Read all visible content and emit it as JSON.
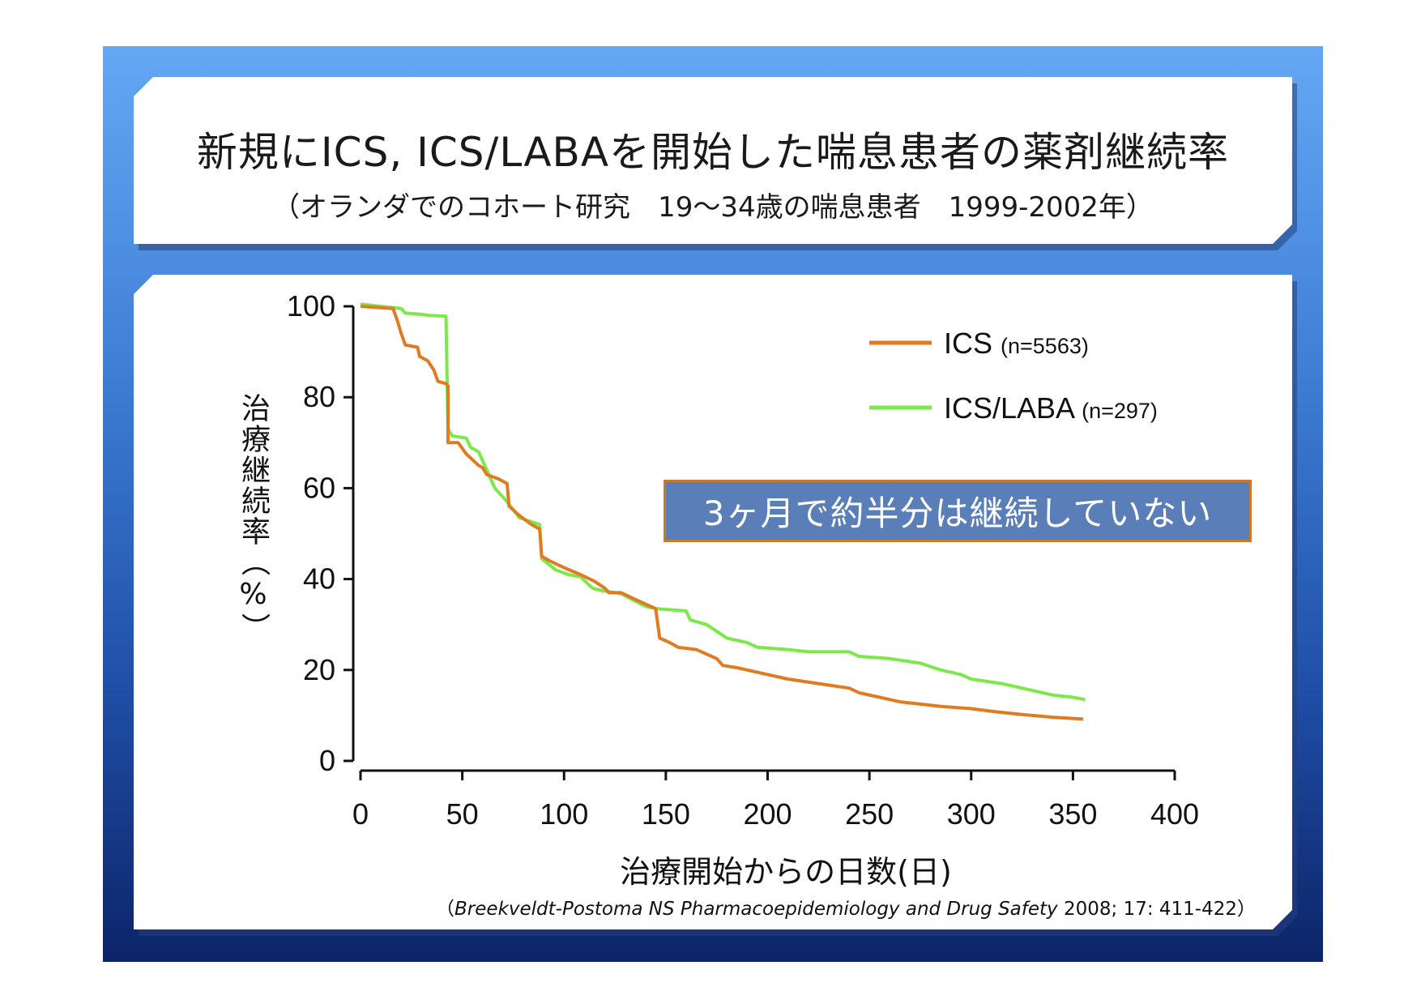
{
  "title": "新規にICS, ICS/LABAを開始した喘息患者の薬剤継続率",
  "subtitle": "（オランダでのコホート研究　19〜34歳の喘息患者　1999-2002年）",
  "callout": "3ヶ月で約半分は継続していない",
  "citation": {
    "open": "（",
    "authors_journal": "Breekveldt-Postoma NS Pharmacoepidemiology and Drug Safety",
    "details": " 2008; 17: 411-422）"
  },
  "colors": {
    "ics": "#e07b22",
    "ics_laba": "#7de84a",
    "callout_bg": "#5a7fb8",
    "callout_border": "#c87a2a"
  },
  "chart_data": {
    "type": "line",
    "xlabel": "治療開始からの日数(日)",
    "ylabel": "治療継続率（%）",
    "xlim": [
      0,
      400
    ],
    "ylim": [
      0,
      100
    ],
    "xticks": [
      0,
      50,
      100,
      150,
      200,
      250,
      300,
      350,
      400
    ],
    "yticks": [
      0,
      20,
      40,
      60,
      80,
      100
    ],
    "grid": false,
    "legend_position": "top-right",
    "series": [
      {
        "name": "ICS",
        "legend_label": "ICS",
        "legend_n": "(n=5563)",
        "color": "#e07b22",
        "points": [
          [
            0,
            100
          ],
          [
            16,
            99.5
          ],
          [
            18,
            97
          ],
          [
            20,
            94
          ],
          [
            22,
            91.5
          ],
          [
            28,
            91
          ],
          [
            29,
            89
          ],
          [
            33,
            88
          ],
          [
            36,
            86
          ],
          [
            38,
            83.5
          ],
          [
            42,
            83
          ],
          [
            43,
            82.5
          ],
          [
            43,
            70
          ],
          [
            48,
            70
          ],
          [
            52,
            67.5
          ],
          [
            58,
            65
          ],
          [
            60,
            64.5
          ],
          [
            62,
            63
          ],
          [
            68,
            62
          ],
          [
            72,
            61
          ],
          [
            73,
            56
          ],
          [
            78,
            54
          ],
          [
            84,
            52
          ],
          [
            88,
            51
          ],
          [
            89,
            45
          ],
          [
            93,
            44
          ],
          [
            100,
            42.5
          ],
          [
            108,
            41
          ],
          [
            115,
            39.5
          ],
          [
            120,
            38
          ],
          [
            122,
            37
          ],
          [
            128,
            37
          ],
          [
            135,
            35.5
          ],
          [
            145,
            33.5
          ],
          [
            147,
            27
          ],
          [
            152,
            26
          ],
          [
            156,
            25
          ],
          [
            165,
            24.5
          ],
          [
            170,
            23.5
          ],
          [
            175,
            22.5
          ],
          [
            178,
            21
          ],
          [
            185,
            20.5
          ],
          [
            200,
            19
          ],
          [
            210,
            18
          ],
          [
            225,
            17
          ],
          [
            240,
            16
          ],
          [
            245,
            15
          ],
          [
            255,
            14
          ],
          [
            260,
            13.5
          ],
          [
            265,
            13
          ],
          [
            275,
            12.5
          ],
          [
            285,
            12
          ],
          [
            300,
            11.5
          ],
          [
            312,
            10.8
          ],
          [
            325,
            10.2
          ],
          [
            340,
            9.6
          ],
          [
            355,
            9.2
          ]
        ]
      },
      {
        "name": "ICS/LABA",
        "legend_label": "ICS/LABA",
        "legend_n": "(n=297)",
        "color": "#7de84a",
        "points": [
          [
            0,
            100.5
          ],
          [
            10,
            100
          ],
          [
            20,
            99.5
          ],
          [
            22,
            98.5
          ],
          [
            28,
            98.3
          ],
          [
            34,
            98
          ],
          [
            42,
            97.8
          ],
          [
            43,
            73
          ],
          [
            45,
            71.5
          ],
          [
            52,
            71
          ],
          [
            54,
            69
          ],
          [
            58,
            68
          ],
          [
            60,
            66
          ],
          [
            66,
            60
          ],
          [
            72,
            57
          ],
          [
            78,
            53.5
          ],
          [
            88,
            52
          ],
          [
            89,
            44.5
          ],
          [
            96,
            42
          ],
          [
            102,
            41
          ],
          [
            108,
            40.5
          ],
          [
            114,
            38
          ],
          [
            118,
            37.5
          ],
          [
            128,
            36.8
          ],
          [
            140,
            34
          ],
          [
            145,
            33.5
          ],
          [
            160,
            33
          ],
          [
            162,
            31
          ],
          [
            170,
            30
          ],
          [
            180,
            27
          ],
          [
            190,
            26
          ],
          [
            195,
            25
          ],
          [
            210,
            24.5
          ],
          [
            220,
            24
          ],
          [
            240,
            24
          ],
          [
            245,
            23
          ],
          [
            260,
            22.5
          ],
          [
            275,
            21.5
          ],
          [
            285,
            20
          ],
          [
            295,
            19
          ],
          [
            300,
            18
          ],
          [
            315,
            17
          ],
          [
            325,
            16
          ],
          [
            330,
            15.5
          ],
          [
            340,
            14.5
          ],
          [
            350,
            14
          ],
          [
            356,
            13.5
          ]
        ]
      }
    ]
  }
}
